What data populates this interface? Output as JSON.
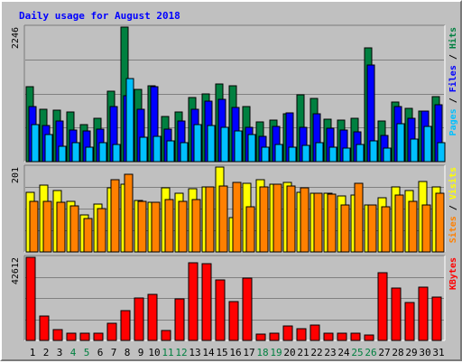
{
  "chart_data": {
    "type": "bar",
    "title": "Daily usage for August 2018",
    "categories": [
      "1",
      "2",
      "3",
      "4",
      "5",
      "6",
      "7",
      "8",
      "9",
      "10",
      "11",
      "12",
      "13",
      "14",
      "15",
      "16",
      "17",
      "18",
      "19",
      "20",
      "21",
      "22",
      "23",
      "24",
      "25",
      "26",
      "27",
      "28",
      "29",
      "30",
      "31"
    ],
    "weekend_days": [
      "4",
      "5",
      "11",
      "12",
      "18",
      "19",
      "25",
      "26"
    ],
    "panels": [
      {
        "id": "hits_files_pages",
        "max_label": "2246",
        "ymax": 2246,
        "right_labels": [
          {
            "text": "Pages",
            "color": "#00c0ff"
          },
          {
            "text": " / ",
            "color": "#000000"
          },
          {
            "text": "Files",
            "color": "#0000ff"
          },
          {
            "text": " / ",
            "color": "#000000"
          },
          {
            "text": "Hits",
            "color": "#008040"
          }
        ],
        "series": [
          {
            "name": "Hits",
            "color": "#008040",
            "values": [
              1255,
              877,
              855,
              836,
              612,
              725,
              1169,
              2246,
              1203,
              1262,
              753,
              834,
              1070,
              1129,
              1303,
              1271,
              914,
              656,
              693,
              796,
              1109,
              1059,
              706,
              700,
              722,
              1904,
              679,
              1001,
              887,
              846,
              1078
            ]
          },
          {
            "name": "Files",
            "color": "#0000ff",
            "values": [
              924,
              600,
              682,
              534,
              507,
              543,
              924,
              1103,
              873,
              1256,
              542,
              682,
              867,
              1017,
              1037,
              897,
              570,
              428,
              588,
              816,
              580,
              804,
              555,
              527,
              496,
              1606,
              442,
              920,
              731,
              846,
              949
            ]
          },
          {
            "name": "Pages",
            "color": "#00c0ff",
            "values": [
              618,
              446,
              255,
              320,
              245,
              317,
              292,
              1382,
              412,
              429,
              354,
              310,
              613,
              602,
              570,
              519,
              458,
              244,
              291,
              244,
              269,
              320,
              234,
              222,
              284,
              345,
              220,
              637,
              374,
              583,
              318
            ]
          }
        ]
      },
      {
        "id": "visits_sites",
        "max_label": "201",
        "ymax": 201,
        "right_labels": [
          {
            "text": "Sites",
            "color": "#ff8000"
          },
          {
            "text": " / ",
            "color": "#000000"
          },
          {
            "text": "Visits",
            "color": "#ffff00"
          }
        ],
        "series": [
          {
            "name": "Visits",
            "color": "#ffff00",
            "values": [
              141,
              159,
              146,
              120,
              88,
              113,
              151,
              160,
              121,
              118,
              151,
              140,
              150,
              154,
              201,
              81,
              163,
              171,
              161,
              165,
              141,
              139,
              140,
              133,
              135,
              112,
              128,
              155,
              145,
              167,
              155
            ]
          },
          {
            "name": "Sites",
            "color": "#ff8000",
            "values": [
              119,
              120,
              117,
              110,
              80,
              102,
              172,
              183,
              119,
              117,
              124,
              120,
              124,
              155,
              157,
              164,
              106,
              154,
              160,
              156,
              151,
              138,
              137,
              112,
              162,
              112,
              107,
              135,
              120,
              112,
              138
            ]
          }
        ]
      },
      {
        "id": "kbytes",
        "max_label": "42612",
        "ymax": 42612,
        "right_labels": [
          {
            "text": "KBytes",
            "color": "#ff0000"
          }
        ],
        "series": [
          {
            "name": "KBytes",
            "color": "#ff0000",
            "values": [
              42612,
              12652,
              5600,
              3490,
              3550,
              3670,
              8620,
              15440,
              21690,
              23780,
              5250,
              21530,
              39850,
              39420,
              31110,
              19830,
              32120,
              3190,
              3580,
              7600,
              6020,
              7710,
              3540,
              3490,
              3930,
              2600,
              34570,
              26900,
              19590,
              27400,
              22380
            ]
          }
        ]
      }
    ]
  }
}
